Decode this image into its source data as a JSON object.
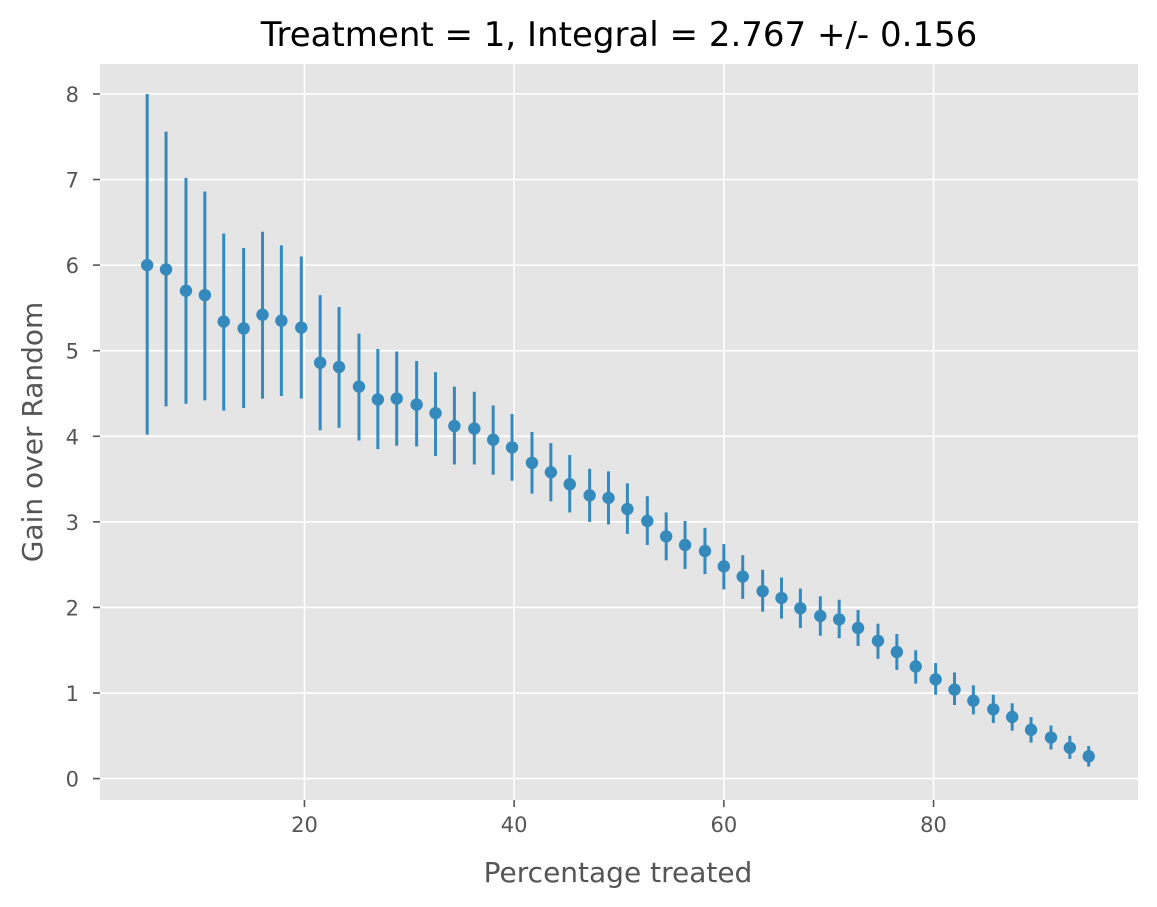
{
  "chart_data": {
    "type": "errorbar-scatter",
    "title": "Treatment = 1, Integral = 2.767 +/- 0.156",
    "xlabel": "Percentage treated",
    "ylabel": "Gain over Random",
    "xlim": [
      0.5,
      99.5
    ],
    "ylim": [
      -0.25,
      8.35
    ],
    "xticks": [
      20,
      40,
      60,
      80
    ],
    "yticks": [
      0,
      1,
      2,
      3,
      4,
      5,
      6,
      7,
      8
    ],
    "grid": true,
    "colors": {
      "background": "#e5e5e5",
      "grid": "#ffffff",
      "marker": "#348abd",
      "tick_text": "#555555",
      "title_text": "#000000"
    },
    "series": [
      {
        "name": "Treatment 1",
        "x": [
          5.0,
          6.8,
          8.7,
          10.5,
          12.3,
          14.2,
          16.0,
          17.8,
          19.7,
          21.5,
          23.3,
          25.2,
          27.0,
          28.8,
          30.7,
          32.5,
          34.3,
          36.2,
          38.0,
          39.8,
          41.7,
          43.5,
          45.3,
          47.2,
          49.0,
          50.8,
          52.7,
          54.5,
          56.3,
          58.2,
          60.0,
          61.8,
          63.7,
          65.5,
          67.3,
          69.2,
          71.0,
          72.8,
          74.7,
          76.5,
          78.3,
          80.2,
          82.0,
          83.8,
          85.7,
          87.5,
          89.3,
          91.2,
          93.0,
          94.8
        ],
        "y": [
          6.0,
          5.95,
          5.7,
          5.65,
          5.34,
          5.26,
          5.42,
          5.35,
          5.27,
          4.86,
          4.81,
          4.58,
          4.43,
          4.44,
          4.37,
          4.27,
          4.12,
          4.09,
          3.96,
          3.87,
          3.69,
          3.58,
          3.44,
          3.31,
          3.28,
          3.15,
          3.01,
          2.83,
          2.73,
          2.66,
          2.48,
          2.36,
          2.19,
          2.11,
          1.99,
          1.9,
          1.86,
          1.76,
          1.61,
          1.48,
          1.31,
          1.16,
          1.04,
          0.91,
          0.81,
          0.72,
          0.57,
          0.48,
          0.36,
          0.26
        ],
        "y_low": [
          4.02,
          4.35,
          4.38,
          4.42,
          4.3,
          4.33,
          4.44,
          4.47,
          4.44,
          4.07,
          4.1,
          3.95,
          3.85,
          3.89,
          3.88,
          3.77,
          3.67,
          3.67,
          3.55,
          3.48,
          3.33,
          3.24,
          3.11,
          3.0,
          2.97,
          2.86,
          2.73,
          2.55,
          2.45,
          2.39,
          2.21,
          2.1,
          1.95,
          1.87,
          1.76,
          1.67,
          1.64,
          1.55,
          1.4,
          1.27,
          1.11,
          0.98,
          0.86,
          0.75,
          0.65,
          0.56,
          0.42,
          0.34,
          0.23,
          0.14
        ],
        "y_high": [
          8.0,
          7.56,
          7.02,
          6.86,
          6.37,
          6.2,
          6.39,
          6.23,
          6.1,
          5.65,
          5.51,
          5.2,
          5.02,
          4.99,
          4.88,
          4.75,
          4.58,
          4.52,
          4.36,
          4.26,
          4.05,
          3.92,
          3.78,
          3.62,
          3.59,
          3.45,
          3.3,
          3.11,
          3.01,
          2.93,
          2.74,
          2.61,
          2.44,
          2.35,
          2.22,
          2.13,
          2.09,
          1.97,
          1.81,
          1.69,
          1.5,
          1.35,
          1.24,
          1.09,
          0.98,
          0.88,
          0.72,
          0.62,
          0.5,
          0.38
        ]
      }
    ]
  }
}
